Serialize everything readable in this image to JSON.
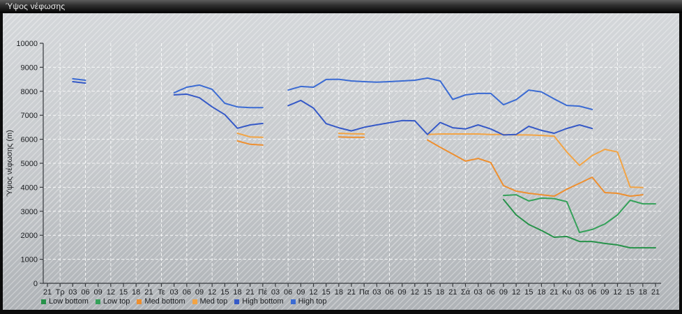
{
  "window": {
    "title": "Ύψος νέφωσης"
  },
  "chart_data": {
    "type": "line",
    "title": "Ύψος νέφωσης",
    "xlabel": "",
    "ylabel": "Ύψος νέφωσης (m)",
    "ylim": [
      0,
      10000
    ],
    "y_ticks": [
      0,
      1000,
      2000,
      3000,
      4000,
      5000,
      6000,
      7000,
      8000,
      9000,
      10000
    ],
    "grid": "white dashed; horizontal every 1000 m, vertical every 6 h",
    "legend_position": "bottom",
    "x_step_hours": 3,
    "categories": [
      "21",
      "Τρ",
      "03",
      "06",
      "09",
      "12",
      "15",
      "18",
      "21",
      "Τε",
      "03",
      "06",
      "09",
      "12",
      "15",
      "18",
      "21",
      "Πέ",
      "03",
      "06",
      "09",
      "12",
      "15",
      "18",
      "21",
      "Πα",
      "03",
      "06",
      "09",
      "12",
      "15",
      "18",
      "21",
      "Σά",
      "03",
      "06",
      "09",
      "12",
      "15",
      "18",
      "21",
      "Κυ",
      "03",
      "06",
      "09",
      "12",
      "15",
      "18",
      "21"
    ],
    "series": [
      {
        "name": "Low bottom",
        "color": "#27924a",
        "values": [
          null,
          null,
          null,
          null,
          null,
          null,
          null,
          null,
          null,
          null,
          null,
          null,
          null,
          null,
          null,
          null,
          null,
          null,
          null,
          null,
          null,
          null,
          null,
          null,
          null,
          null,
          null,
          null,
          null,
          null,
          null,
          null,
          null,
          null,
          null,
          null,
          3490,
          2850,
          2450,
          2200,
          1920,
          1950,
          1740,
          1740,
          1660,
          1600,
          1480,
          1480,
          1480
        ]
      },
      {
        "name": "Low top",
        "color": "#35a15a",
        "values": [
          null,
          null,
          null,
          null,
          null,
          null,
          null,
          null,
          null,
          null,
          null,
          null,
          null,
          null,
          null,
          null,
          null,
          null,
          null,
          null,
          null,
          null,
          null,
          null,
          null,
          null,
          null,
          null,
          null,
          null,
          null,
          null,
          null,
          null,
          null,
          null,
          3660,
          3690,
          3430,
          3550,
          3530,
          3400,
          2120,
          2240,
          2470,
          2850,
          3460,
          3310,
          3310
        ]
      },
      {
        "name": "Med bottom",
        "color": "#ee8f2f",
        "values": [
          null,
          null,
          null,
          null,
          null,
          null,
          null,
          null,
          null,
          null,
          null,
          null,
          null,
          null,
          null,
          5930,
          5790,
          5760,
          null,
          null,
          null,
          null,
          null,
          6100,
          6080,
          6080,
          null,
          null,
          null,
          null,
          5970,
          5670,
          5380,
          5090,
          5200,
          5030,
          4070,
          3840,
          3750,
          3690,
          3630,
          3920,
          4170,
          4420,
          3780,
          3750,
          3630,
          3690,
          null
        ]
      },
      {
        "name": "Med top",
        "color": "#f3a444",
        "values": [
          null,
          null,
          null,
          null,
          null,
          null,
          null,
          null,
          null,
          null,
          null,
          null,
          null,
          null,
          null,
          6250,
          6100,
          6080,
          null,
          null,
          null,
          null,
          null,
          6250,
          6230,
          6220,
          null,
          null,
          null,
          null,
          6200,
          6220,
          6220,
          6220,
          6220,
          6200,
          6200,
          6180,
          6180,
          6160,
          6130,
          5470,
          4910,
          5320,
          5580,
          5470,
          4010,
          3990,
          null
        ]
      },
      {
        "name": "High bottom",
        "color": "#3559c7",
        "values": [
          null,
          null,
          8400,
          8340,
          null,
          null,
          null,
          null,
          null,
          null,
          7850,
          7880,
          7730,
          7350,
          7030,
          6460,
          6600,
          6660,
          null,
          7400,
          7620,
          7300,
          6650,
          6480,
          6350,
          6500,
          6600,
          6690,
          6780,
          6770,
          6200,
          6700,
          6480,
          6430,
          6600,
          6430,
          6180,
          6200,
          6540,
          6370,
          6250,
          6450,
          6600,
          6450,
          null,
          null,
          null,
          null,
          null
        ]
      },
      {
        "name": "High top",
        "color": "#3b6bd3",
        "values": [
          null,
          null,
          8520,
          8460,
          null,
          null,
          null,
          null,
          null,
          null,
          7940,
          8170,
          8260,
          8080,
          7500,
          7350,
          7320,
          7320,
          null,
          8050,
          8200,
          8170,
          8490,
          8500,
          8430,
          8400,
          8380,
          8400,
          8430,
          8460,
          8550,
          8430,
          7660,
          7850,
          7910,
          7910,
          7440,
          7650,
          8050,
          7970,
          7680,
          7410,
          7380,
          7240,
          null,
          null,
          null,
          null,
          null
        ]
      }
    ]
  }
}
